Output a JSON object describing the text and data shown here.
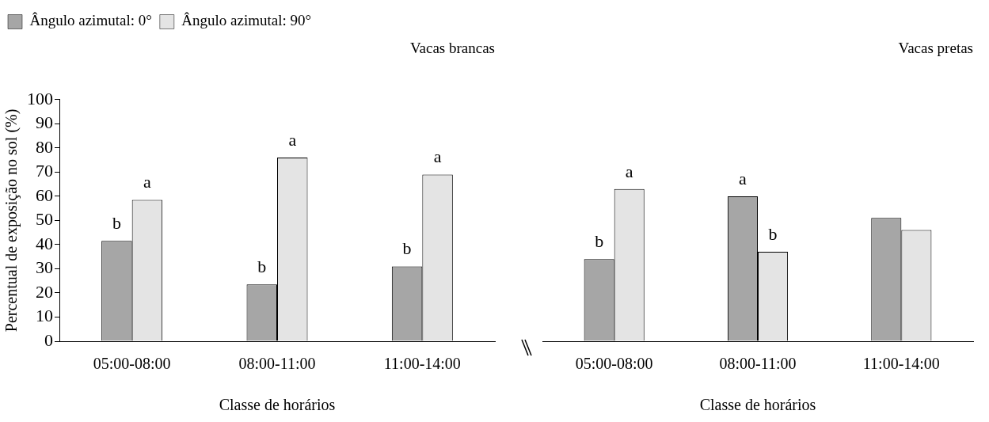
{
  "chart_data": [
    {
      "type": "bar",
      "title": "Vacas brancas",
      "xlabel": "Classe de horários",
      "ylabel": "Percentual de exposição no sol (%)",
      "categories": [
        "05:00-08:00",
        "08:00-11:00",
        "11:00-14:00"
      ],
      "series": [
        {
          "name": "Ângulo azimutal: 0°",
          "color": "#a6a6a6",
          "values": [
            41.5,
            23.5,
            31
          ],
          "value_labels": [
            "b",
            "b",
            "b"
          ]
        },
        {
          "name": "Ângulo azimutal: 90°",
          "color": "#e4e4e4",
          "values": [
            58.5,
            76,
            69
          ],
          "value_labels": [
            "a",
            "a",
            "a"
          ]
        }
      ],
      "ylim": [
        0,
        100
      ],
      "yticks": [
        0,
        10,
        20,
        30,
        40,
        50,
        60,
        70,
        80,
        90,
        100
      ],
      "grid": false,
      "legend": "top left"
    },
    {
      "type": "bar",
      "title": "Vacas pretas",
      "xlabel": "Classe de horários",
      "categories": [
        "05:00-08:00",
        "08:00-11:00",
        "11:00-14:00"
      ],
      "series": [
        {
          "color": "#a6a6a6",
          "values": [
            34,
            60,
            51
          ],
          "value_labels": [
            "b",
            "a",
            null
          ]
        },
        {
          "color": "#e4e4e4",
          "values": [
            63,
            37,
            46
          ],
          "value_labels": [
            "a",
            "b",
            null
          ]
        }
      ],
      "ylim": [
        0,
        100
      ],
      "yticks": [
        0,
        10,
        20,
        30,
        40,
        50,
        60,
        70,
        80,
        90,
        100
      ],
      "grid": false,
      "tick_labels": "x"
    }
  ]
}
